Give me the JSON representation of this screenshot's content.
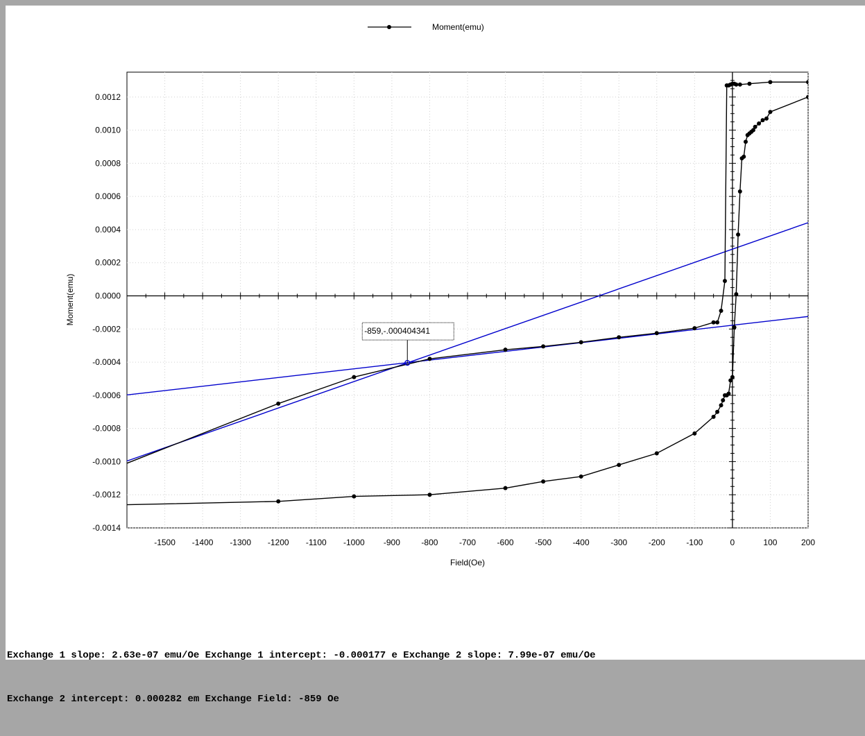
{
  "results": {
    "line1": "Exchange 1 slope: 2.63e-07 emu/Oe Exchange 1 intercept: -0.000177 e Exchange 2 slope: 7.99e-07 emu/Oe",
    "line2": "Exchange 2 intercept: 0.000282 em Exchange Field: -859 Oe"
  },
  "chart_data": {
    "type": "line",
    "title": "",
    "xlabel": "Field(Oe)",
    "ylabel": "Moment(emu)",
    "xlim": [
      -1600,
      200
    ],
    "ylim": [
      -0.0014,
      0.00135
    ],
    "xticks": [
      -1500,
      -1400,
      -1300,
      -1200,
      -1100,
      -1000,
      -900,
      -800,
      -700,
      -600,
      -500,
      -400,
      -300,
      -200,
      -100,
      0,
      100,
      200
    ],
    "xtick_labels": [
      "-1500",
      "-1400",
      "-1300",
      "-1200",
      "-1100",
      "-1000",
      "-900",
      "-800",
      "-700",
      "-600",
      "-500",
      "-400",
      "-300",
      "-200",
      "-100",
      "0",
      "100",
      "200"
    ],
    "yticks": [
      0.0012,
      0.001,
      0.0008,
      0.0006,
      0.0004,
      0.0002,
      0,
      -0.0002,
      -0.0004,
      -0.0006,
      -0.0008,
      -0.001,
      -0.0012,
      -0.0014
    ],
    "ytick_labels": [
      "0.0012",
      "0.0010",
      "0.0008",
      "0.0006",
      "0.0004",
      "0.0002",
      "0.0000",
      "-0.0002",
      "-0.0004",
      "-0.0006",
      "-0.0008",
      "-0.0010",
      "-0.0012",
      "-0.0014"
    ],
    "grid": true,
    "legend_position": "top-center",
    "series": [
      {
        "name": "Moment(emu)",
        "color": "#000000",
        "branches": [
          {
            "x": [
              200,
              100,
              45,
              20,
              10,
              5,
              0,
              -5,
              -10,
              -15,
              -20,
              -30,
              -40,
              -50,
              -100,
              -200,
              -300,
              -400,
              -500,
              -600,
              -800,
              -1000,
              -1200,
              -1600
            ],
            "y": [
              0.00129,
              0.00129,
              0.00128,
              0.001275,
              0.001275,
              0.00128,
              0.00128,
              0.001275,
              0.00127,
              0.00127,
              9e-05,
              -9e-05,
              -0.00016,
              -0.00016,
              -0.000195,
              -0.000225,
              -0.00025,
              -0.00028,
              -0.000305,
              -0.000325,
              -0.00038,
              -0.00049,
              -0.00065,
              -0.00101
            ]
          },
          {
            "x": [
              -1600,
              -1200,
              -1000,
              -800,
              -600,
              -500,
              -400,
              -300,
              -200,
              -100,
              -50,
              -40,
              -30,
              -25,
              -20,
              -15,
              -10,
              -5,
              0,
              5,
              10,
              15,
              20,
              25,
              30,
              35,
              40,
              45,
              50,
              55,
              60,
              70,
              80,
              90,
              100,
              200
            ],
            "y": [
              -0.00126,
              -0.00124,
              -0.00121,
              -0.0012,
              -0.00116,
              -0.00112,
              -0.00109,
              -0.00102,
              -0.00095,
              -0.00083,
              -0.00073,
              -0.0007,
              -0.00066,
              -0.00063,
              -0.0006,
              -0.0006,
              -0.00059,
              -0.00051,
              -0.00049,
              -0.00019,
              1e-05,
              0.00037,
              0.00063,
              0.00083,
              0.00084,
              0.00093,
              0.00097,
              0.00098,
              0.00099,
              0.001,
              0.00102,
              0.00104,
              0.00106,
              0.00107,
              0.00111,
              0.0012
            ]
          }
        ]
      }
    ],
    "fit_lines": [
      {
        "name": "Exchange 1",
        "color": "#0000cc",
        "slope": 2.63e-07,
        "intercept": -0.000177
      },
      {
        "name": "Exchange 2",
        "color": "#0000cc",
        "slope": 7.99e-07,
        "intercept": 0.000282
      }
    ],
    "annotation": {
      "x": -859,
      "y": -0.000404341,
      "text": "-859,-.000404341"
    }
  }
}
